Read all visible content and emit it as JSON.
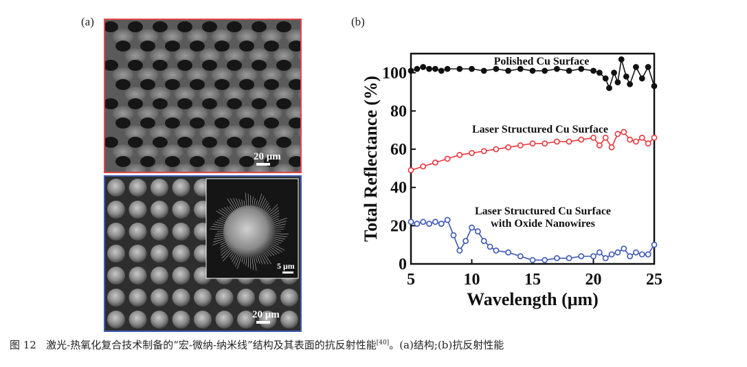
{
  "figure": {
    "panel_a_label": "(a)",
    "panel_b_label": "(b)",
    "scalebar_top": "20 μm",
    "scalebar_bottom": "20 μm",
    "scalebar_inset": "5 μm",
    "colors": {
      "top_frame": "#e8454a",
      "bottom_frame": "#3d5db8"
    }
  },
  "caption": {
    "figure_no": "图 12",
    "text": "激光-热氧化复合技术制备的“宏-微纳-纳米线”结构及其表面的抗反射性能",
    "ref": "[40]",
    "tail": "。(a)结构;(b)抗反射性能"
  },
  "chart_data": {
    "type": "line",
    "xlabel": "Wavelength (μm)",
    "ylabel": "Total Reflectance (%)",
    "xlim": [
      5,
      25
    ],
    "ylim": [
      0,
      110
    ],
    "xticks": [
      5,
      10,
      15,
      20,
      25
    ],
    "yticks": [
      0,
      20,
      40,
      60,
      80,
      100
    ],
    "grid": false,
    "series": [
      {
        "name": "Polished Cu Surface",
        "color": "#111111",
        "x": [
          5,
          5.5,
          6,
          6.5,
          7,
          7.5,
          8,
          9,
          10,
          11,
          12,
          13,
          14,
          15,
          16,
          17,
          18,
          19,
          20,
          20.5,
          21,
          21.3,
          21.7,
          22,
          22.3,
          22.7,
          23,
          23.5,
          24,
          24.5,
          25
        ],
        "y": [
          101,
          102,
          103,
          102,
          102,
          101,
          102,
          102,
          102,
          101,
          102,
          101,
          102,
          101,
          101,
          102,
          101,
          102,
          101,
          100,
          97,
          92,
          100,
          95,
          107,
          98,
          94,
          103,
          97,
          103,
          93
        ]
      },
      {
        "name": "Laser Structured Cu Surface",
        "color": "#e8353a",
        "x": [
          5,
          6,
          7,
          8,
          9,
          10,
          11,
          12,
          13,
          14,
          15,
          16,
          17,
          18,
          19,
          20,
          20.5,
          21,
          21.5,
          22,
          22.5,
          23,
          23.5,
          24,
          24.5,
          25
        ],
        "y": [
          49,
          51,
          53,
          55,
          57,
          58,
          59,
          60,
          61,
          62,
          63,
          63,
          64,
          64,
          65,
          66,
          62,
          66,
          61,
          68,
          69,
          65,
          64,
          66,
          63,
          66
        ]
      },
      {
        "name": "Laser Structured Cu Surface with Oxide Nanowires",
        "color": "#3a56b5",
        "x": [
          5,
          5.5,
          6,
          6.5,
          7,
          7.5,
          8,
          8.5,
          9,
          9.5,
          10,
          10.5,
          11,
          11.5,
          12,
          13,
          14,
          15,
          16,
          17,
          18,
          19,
          20,
          20.5,
          21,
          21.5,
          22,
          22.5,
          23,
          23.5,
          24,
          24.5,
          25
        ],
        "y": [
          22,
          21,
          22,
          21,
          22,
          21,
          23,
          15,
          7,
          12,
          19,
          17,
          12,
          9,
          7,
          6,
          4,
          2,
          2,
          3,
          3,
          4,
          4,
          6,
          3,
          5,
          6,
          8,
          4,
          6,
          5,
          5,
          10
        ]
      }
    ]
  }
}
